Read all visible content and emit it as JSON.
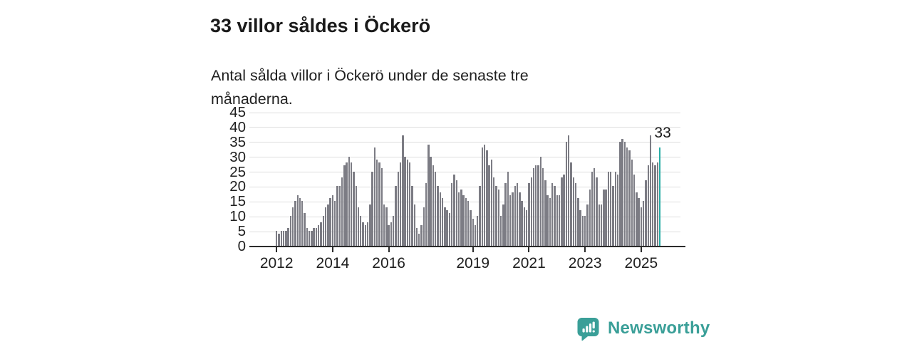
{
  "header": {
    "title": "33 villor såldes i Öckerö",
    "subtitle": "Antal sålda villor i Öckerö under de senaste tre månaderna."
  },
  "footer": {
    "brand": "Newsworthy",
    "logo_icon": "speech-bubble-with-bar-chart-and-exclamation"
  },
  "colors": {
    "bar": "#7c7c84",
    "highlight": "#29ada6",
    "brand_teal": "#3a9f98",
    "gridline": "#dedede",
    "axis": "#2b2b2b",
    "text": "#1a1a1a"
  },
  "chart_data": {
    "type": "bar",
    "title": "33 villor såldes i Öckerö",
    "subtitle": "Antal sålda villor i Öckerö under de senaste tre månaderna.",
    "xlabel": "",
    "ylabel": "",
    "x_unit": "month",
    "x_range": [
      "2012-01",
      "2025-09"
    ],
    "ylim": [
      0,
      45
    ],
    "yticks": [
      0,
      5,
      10,
      15,
      20,
      25,
      30,
      35,
      40,
      45
    ],
    "grid": true,
    "legend": false,
    "highlight_last_bar": true,
    "annotation": {
      "text": "33",
      "applies_to": "last-bar"
    },
    "xticks": [
      {
        "label": "2012",
        "month_index": 0
      },
      {
        "label": "2014",
        "month_index": 24
      },
      {
        "label": "2016",
        "month_index": 48
      },
      {
        "label": "2019",
        "month_index": 84
      },
      {
        "label": "2021",
        "month_index": 108
      },
      {
        "label": "2023",
        "month_index": 132
      },
      {
        "label": "2025",
        "month_index": 156
      }
    ],
    "values": [
      5,
      4,
      5,
      5,
      5,
      6,
      10,
      13,
      15,
      17,
      16,
      15,
      11,
      6,
      5,
      5,
      6,
      6,
      7,
      8,
      10,
      13,
      14,
      16,
      17,
      15,
      20,
      20,
      23,
      27,
      28,
      30,
      28,
      25,
      20,
      13,
      10,
      8,
      7,
      8,
      14,
      25,
      33,
      29,
      28,
      26,
      14,
      13,
      7,
      8,
      10,
      20,
      25,
      28,
      37,
      30,
      29,
      28,
      20,
      14,
      6,
      4,
      7,
      13,
      21,
      34,
      30,
      27,
      25,
      20,
      18,
      16,
      13,
      12,
      11,
      21,
      24,
      22,
      18,
      19,
      17,
      16,
      15,
      12,
      9,
      7,
      10,
      20,
      33,
      34,
      32,
      27,
      29,
      23,
      20,
      19,
      10,
      14,
      21,
      25,
      17,
      18,
      20,
      21,
      18,
      15,
      13,
      12,
      21,
      23,
      26,
      27,
      27,
      30,
      26,
      22,
      17,
      16,
      21,
      20,
      17,
      17,
      23,
      24,
      35,
      37,
      28,
      23,
      21,
      16,
      12,
      10,
      10,
      14,
      19,
      25,
      26,
      23,
      14,
      14,
      19,
      19,
      25,
      25,
      20,
      25,
      24,
      35,
      36,
      35,
      33,
      32,
      29,
      24,
      18,
      16,
      13,
      15,
      22,
      27,
      37,
      28,
      27,
      28,
      33
    ]
  }
}
